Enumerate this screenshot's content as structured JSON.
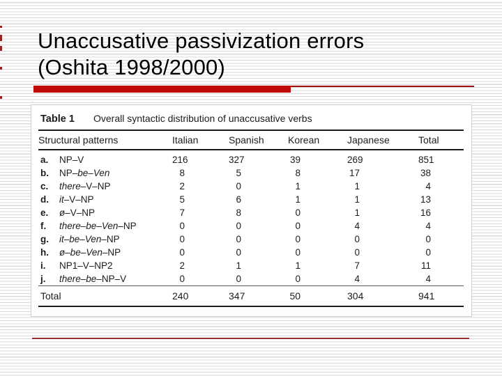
{
  "slide": {
    "title_line1": "Unaccusative passivization errors",
    "title_line2": "(Oshita 1998/2000)"
  },
  "table": {
    "label": "Table 1",
    "caption": "Overall syntactic distribution of unaccusative verbs",
    "columns": [
      "Structural patterns",
      "Italian",
      "Spanish",
      "Korean",
      "Japanese",
      "Total"
    ],
    "rows": [
      {
        "key": "a.",
        "pattern": "NP–V",
        "values": [
          216,
          327,
          39,
          269,
          851
        ]
      },
      {
        "key": "b.",
        "pattern": "NP–be–Ven",
        "values": [
          8,
          5,
          8,
          17,
          38
        ]
      },
      {
        "key": "c.",
        "pattern": "there–V–NP",
        "values": [
          2,
          0,
          1,
          1,
          4
        ]
      },
      {
        "key": "d.",
        "pattern": "it–V–NP",
        "values": [
          5,
          6,
          1,
          1,
          13
        ]
      },
      {
        "key": "e.",
        "pattern": "ø–V–NP",
        "values": [
          7,
          8,
          0,
          1,
          16
        ]
      },
      {
        "key": "f.",
        "pattern": "there–be–Ven–NP",
        "values": [
          0,
          0,
          0,
          4,
          4
        ]
      },
      {
        "key": "g.",
        "pattern": "it–be–Ven–NP",
        "values": [
          0,
          0,
          0,
          0,
          0
        ]
      },
      {
        "key": "h.",
        "pattern": "ø–be–Ven–NP",
        "values": [
          0,
          0,
          0,
          0,
          0
        ]
      },
      {
        "key": "i.",
        "pattern": "NP1–V–NP2",
        "values": [
          2,
          1,
          1,
          7,
          11
        ]
      },
      {
        "key": "j.",
        "pattern": "there–be–NP–V",
        "values": [
          0,
          0,
          0,
          4,
          4
        ]
      }
    ],
    "total": {
      "label": "Total",
      "values": [
        240,
        347,
        50,
        304,
        941
      ]
    }
  },
  "colors": {
    "accent_red": "#c00a0a",
    "underline_thin_red": "#a00c0c",
    "footer_line_red": "#8e3030",
    "stripe_gray": "#d8d8d8",
    "left_accent_red": "#9b2222"
  }
}
